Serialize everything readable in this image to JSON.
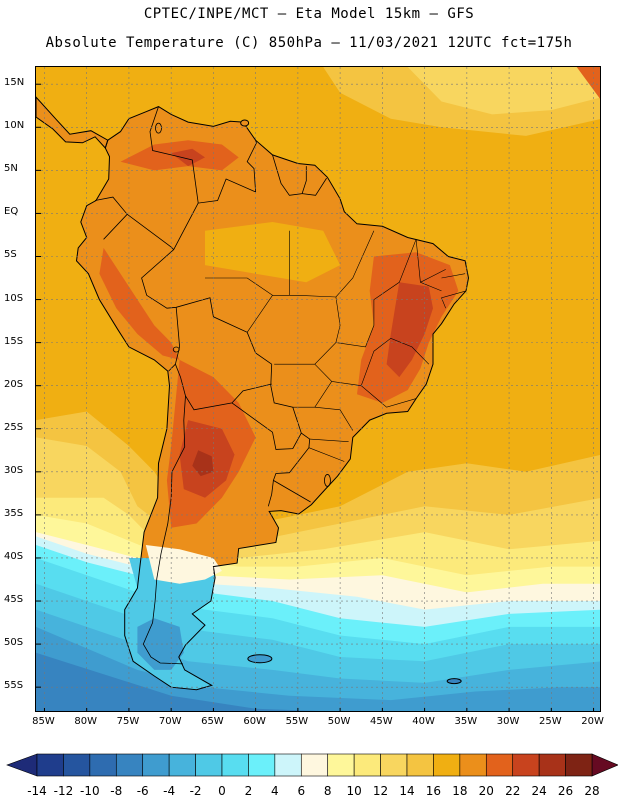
{
  "header": {
    "line1": "CPTEC/INPE/MCT –  Eta Model 15km – GFS",
    "line2": "Absolute Temperature (C) 850hPa – 11/03/2021 12UTC fct=175h"
  },
  "map": {
    "lon_range": [
      -86,
      -19
    ],
    "lat_range": [
      17,
      -58
    ],
    "lat_ticks": [
      {
        "value": 15,
        "label": "15N"
      },
      {
        "value": 10,
        "label": "10N"
      },
      {
        "value": 5,
        "label": "5N"
      },
      {
        "value": 0,
        "label": "EQ"
      },
      {
        "value": -5,
        "label": "5S"
      },
      {
        "value": -10,
        "label": "10S"
      },
      {
        "value": -15,
        "label": "15S"
      },
      {
        "value": -20,
        "label": "20S"
      },
      {
        "value": -25,
        "label": "25S"
      },
      {
        "value": -30,
        "label": "30S"
      },
      {
        "value": -35,
        "label": "35S"
      },
      {
        "value": -40,
        "label": "40S"
      },
      {
        "value": -45,
        "label": "45S"
      },
      {
        "value": -50,
        "label": "50S"
      },
      {
        "value": -55,
        "label": "55S"
      }
    ],
    "lon_ticks": [
      {
        "value": -85,
        "label": "85W"
      },
      {
        "value": -80,
        "label": "80W"
      },
      {
        "value": -75,
        "label": "75W"
      },
      {
        "value": -70,
        "label": "70W"
      },
      {
        "value": -65,
        "label": "65W"
      },
      {
        "value": -60,
        "label": "60W"
      },
      {
        "value": -55,
        "label": "55W"
      },
      {
        "value": -50,
        "label": "50W"
      },
      {
        "value": -45,
        "label": "45W"
      },
      {
        "value": -40,
        "label": "40W"
      },
      {
        "value": -35,
        "label": "35W"
      },
      {
        "value": -30,
        "label": "30W"
      },
      {
        "value": -25,
        "label": "25W"
      },
      {
        "value": -20,
        "label": "20W"
      }
    ],
    "grid": true,
    "region": "South America"
  },
  "colorbar": {
    "labels": [
      "-14",
      "-12",
      "-10",
      "-8",
      "-6",
      "-4",
      "-2",
      "0",
      "2",
      "4",
      "6",
      "8",
      "10",
      "12",
      "14",
      "16",
      "18",
      "20",
      "22",
      "24",
      "26",
      "28"
    ],
    "colors": [
      "#1f3d8c",
      "#25559f",
      "#2e6cb0",
      "#3784c0",
      "#3f9ccf",
      "#47b3dc",
      "#4fc9e6",
      "#58ddf0",
      "#6bf0fa",
      "#cdf5fa",
      "#fef7df",
      "#fef79a",
      "#fcea7b",
      "#f8d65f",
      "#f4c441",
      "#f0af12",
      "#eb8f1b",
      "#e2621c",
      "#c8431e",
      "#a83219",
      "#7e2314"
    ],
    "under_color": "#1e2b78",
    "over_color": "#660a22"
  }
}
